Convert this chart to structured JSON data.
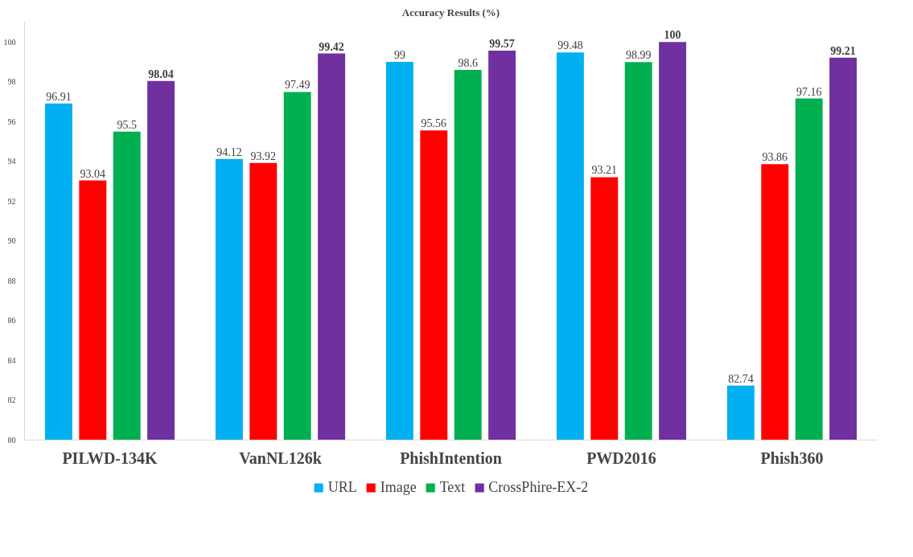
{
  "chart_data": {
    "type": "bar",
    "title": "Accuracy Results (%)",
    "categories": [
      "PILWD-134K",
      "VanNL126k",
      "PhishIntention",
      "PWD2016",
      "Phish360"
    ],
    "series": [
      {
        "name": "URL",
        "color": "#00b0f0",
        "values": [
          96.91,
          94.12,
          99,
          99.48,
          82.74
        ]
      },
      {
        "name": "Image",
        "color": "#ff0000",
        "values": [
          93.04,
          93.92,
          95.56,
          93.21,
          93.86
        ]
      },
      {
        "name": "Text",
        "color": "#00b050",
        "values": [
          95.5,
          97.49,
          98.6,
          98.99,
          97.16
        ]
      },
      {
        "name": "CrossPhire-EX-2",
        "color": "#7030a0",
        "values": [
          98.04,
          99.42,
          99.57,
          100,
          99.21
        ]
      }
    ],
    "ylim": [
      80,
      101
    ],
    "yticks": [
      80,
      82,
      84,
      86,
      88,
      90,
      92,
      94,
      96,
      98,
      100
    ],
    "grid": false,
    "legend": "bottom",
    "data_labels": true
  }
}
